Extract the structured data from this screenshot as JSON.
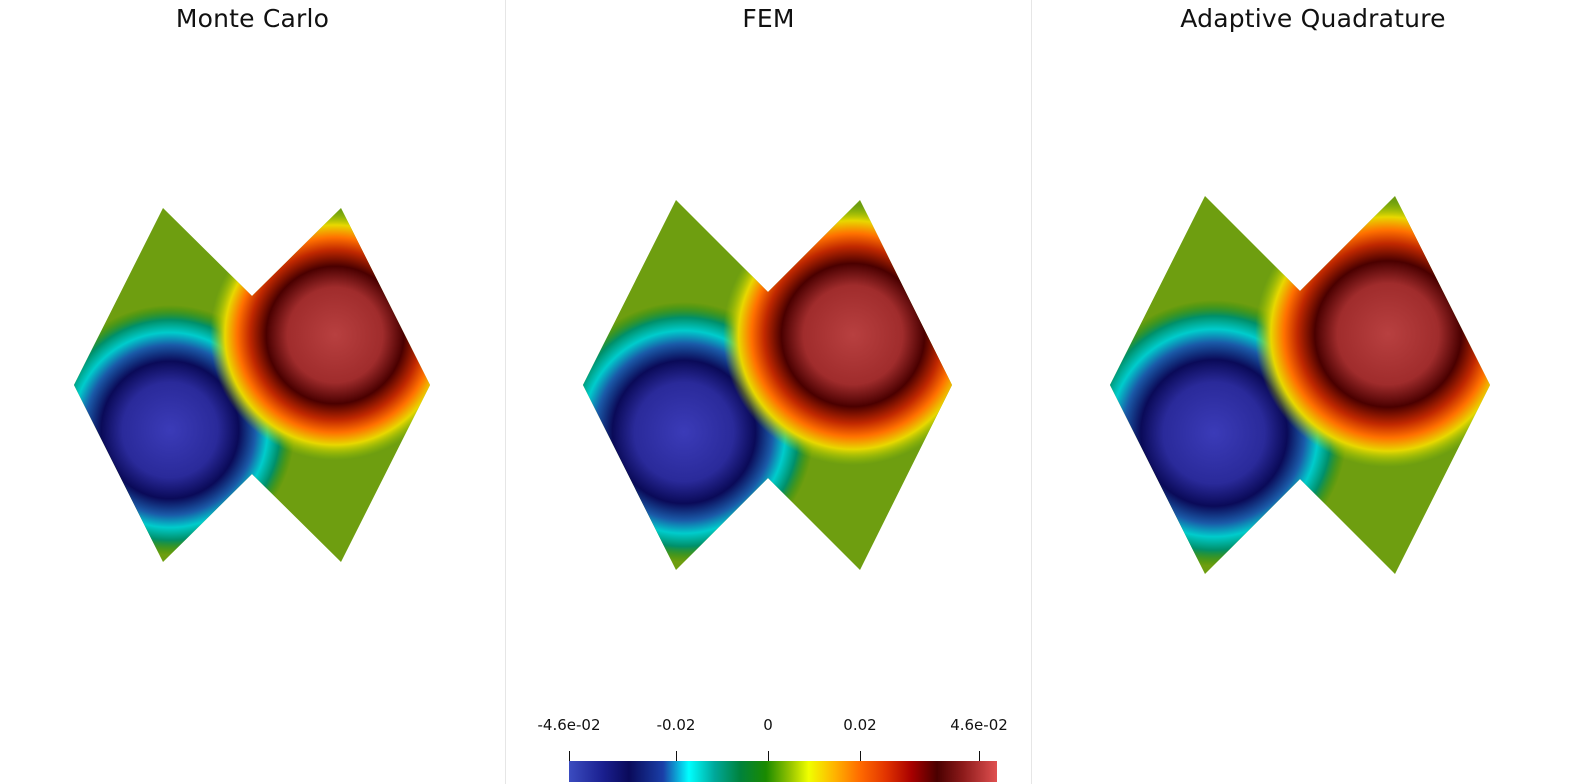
{
  "panels": [
    {
      "title": "Monte Carlo"
    },
    {
      "title": "FEM"
    },
    {
      "title": "Adaptive Quadrature"
    }
  ],
  "colorbar": {
    "min_label": "-4.6e-02",
    "max_label": "4.6e-02",
    "ticks": [
      {
        "value": -0.046,
        "label": "-4.6e-02"
      },
      {
        "value": -0.02,
        "label": "-0.02"
      },
      {
        "value": 0,
        "label": "0"
      },
      {
        "value": 0.02,
        "label": "0.02"
      },
      {
        "value": 0.046,
        "label": "4.6e-02"
      }
    ],
    "colors": {
      "low": "#3b4cc0",
      "mid": "#1a8a00",
      "high": "#e05050"
    }
  }
}
